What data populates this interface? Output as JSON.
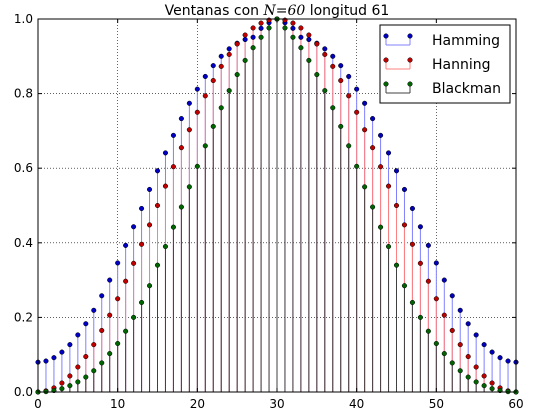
{
  "chart_data": {
    "type": "stem",
    "title": {
      "prefix": "Ventanas con ",
      "math_var": "N",
      "math_rest": "=60",
      "suffix": " longitud 61"
    },
    "xlabel": "",
    "ylabel": "",
    "xlim": [
      0,
      60
    ],
    "ylim": [
      0.0,
      1.0
    ],
    "xticks": [
      0,
      10,
      20,
      30,
      40,
      50,
      60
    ],
    "xtick_labels": [
      "0",
      "10",
      "20",
      "30",
      "40",
      "50",
      "60"
    ],
    "yticks": [
      0.0,
      0.2,
      0.4,
      0.6,
      0.8,
      1.0
    ],
    "ytick_labels": [
      "0.0",
      "0.2",
      "0.4",
      "0.6",
      "0.8",
      "1.0"
    ],
    "grid": true,
    "legend_position": "top-right",
    "x": [
      0,
      1,
      2,
      3,
      4,
      5,
      6,
      7,
      8,
      9,
      10,
      11,
      12,
      13,
      14,
      15,
      16,
      17,
      18,
      19,
      20,
      21,
      22,
      23,
      24,
      25,
      26,
      27,
      28,
      29,
      30,
      31,
      32,
      33,
      34,
      35,
      36,
      37,
      38,
      39,
      40,
      41,
      42,
      43,
      44,
      45,
      46,
      47,
      48,
      49,
      50,
      51,
      52,
      53,
      54,
      55,
      56,
      57,
      58,
      59,
      60
    ],
    "series": [
      {
        "name": "Hamming",
        "color": "#0000bf",
        "stem_color": "#8080ff",
        "values": [
          0.08,
          0.083,
          0.092,
          0.107,
          0.127,
          0.153,
          0.183,
          0.219,
          0.258,
          0.3,
          0.346,
          0.393,
          0.443,
          0.492,
          0.543,
          0.593,
          0.641,
          0.688,
          0.733,
          0.774,
          0.812,
          0.846,
          0.875,
          0.9,
          0.92,
          0.935,
          0.945,
          0.951,
          0.975,
          0.99,
          1.0,
          0.99,
          0.975,
          0.951,
          0.945,
          0.935,
          0.92,
          0.9,
          0.875,
          0.846,
          0.812,
          0.774,
          0.733,
          0.688,
          0.641,
          0.593,
          0.543,
          0.492,
          0.443,
          0.393,
          0.346,
          0.3,
          0.258,
          0.219,
          0.183,
          0.153,
          0.127,
          0.107,
          0.092,
          0.083,
          0.08
        ]
      },
      {
        "name": "Hanning",
        "color": "#bf0000",
        "stem_color": "#ff8080",
        "values": [
          0.0,
          0.003,
          0.011,
          0.024,
          0.043,
          0.067,
          0.095,
          0.127,
          0.165,
          0.206,
          0.25,
          0.297,
          0.345,
          0.396,
          0.448,
          0.5,
          0.552,
          0.604,
          0.655,
          0.703,
          0.75,
          0.794,
          0.835,
          0.873,
          0.905,
          0.933,
          0.957,
          0.976,
          0.989,
          0.997,
          1.0,
          0.997,
          0.989,
          0.976,
          0.957,
          0.933,
          0.905,
          0.873,
          0.835,
          0.794,
          0.75,
          0.703,
          0.655,
          0.604,
          0.552,
          0.5,
          0.448,
          0.396,
          0.345,
          0.297,
          0.25,
          0.206,
          0.165,
          0.127,
          0.095,
          0.067,
          0.043,
          0.024,
          0.011,
          0.003,
          0.0
        ]
      },
      {
        "name": "Blackman",
        "color": "#006400",
        "stem_color": "#404040",
        "values": [
          0.0,
          0.001,
          0.004,
          0.009,
          0.017,
          0.027,
          0.04,
          0.057,
          0.078,
          0.103,
          0.13,
          0.163,
          0.2,
          0.24,
          0.285,
          0.34,
          0.39,
          0.442,
          0.496,
          0.55,
          0.605,
          0.66,
          0.712,
          0.762,
          0.808,
          0.851,
          0.889,
          0.923,
          0.951,
          0.976,
          1.0,
          0.976,
          0.951,
          0.923,
          0.889,
          0.851,
          0.808,
          0.762,
          0.712,
          0.66,
          0.605,
          0.55,
          0.496,
          0.442,
          0.39,
          0.34,
          0.285,
          0.24,
          0.2,
          0.163,
          0.13,
          0.103,
          0.078,
          0.057,
          0.04,
          0.027,
          0.017,
          0.009,
          0.004,
          0.001,
          0.0
        ]
      }
    ]
  }
}
